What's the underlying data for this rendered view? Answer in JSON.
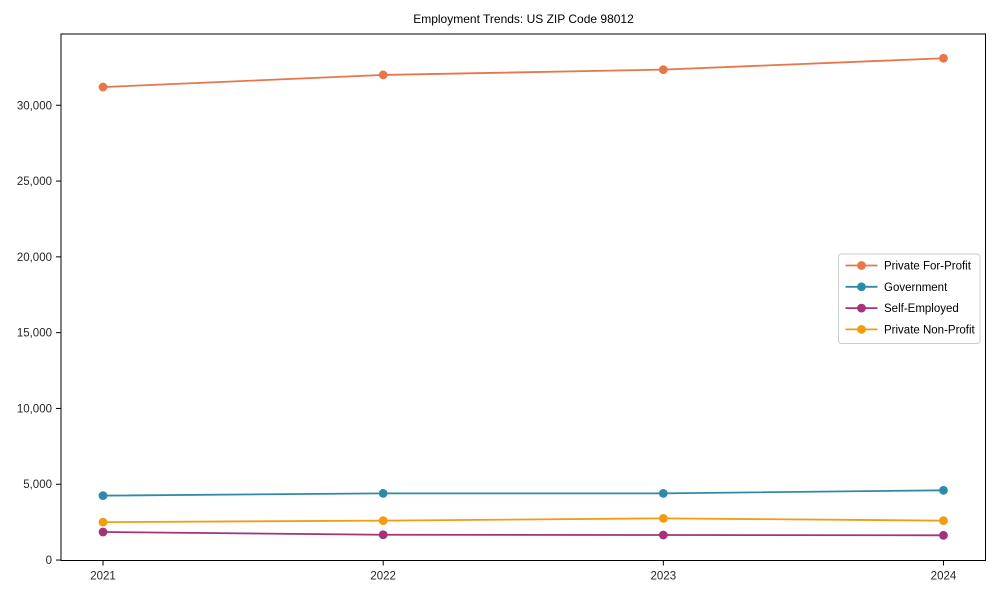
{
  "chart_data": {
    "type": "line",
    "title": "Employment Trends: US ZIP Code 98012",
    "xlabel": "",
    "ylabel": "",
    "x": [
      2021,
      2022,
      2023,
      2024
    ],
    "x_tick_labels": [
      "2021",
      "2022",
      "2023",
      "2024"
    ],
    "series": [
      {
        "name": "Private For-Profit",
        "color": "#e8764b",
        "values": [
          31200,
          32000,
          32350,
          33100
        ]
      },
      {
        "name": "Government",
        "color": "#2e8ba8",
        "values": [
          4250,
          4400,
          4400,
          4600
        ]
      },
      {
        "name": "Self-Employed",
        "color": "#a23477",
        "values": [
          1850,
          1670,
          1650,
          1630
        ]
      },
      {
        "name": "Private Non-Profit",
        "color": "#f39c12",
        "values": [
          2500,
          2600,
          2750,
          2600
        ]
      }
    ],
    "yticks": [
      0,
      5000,
      10000,
      15000,
      20000,
      25000,
      30000
    ],
    "ytick_labels": [
      "0",
      "5,000",
      "10,000",
      "15,000",
      "20,000",
      "25,000",
      "30,000"
    ],
    "ylim": [
      -30,
      34700
    ],
    "xlim": [
      2020.85,
      2024.15
    ],
    "grid": false,
    "legend": {
      "position": "center-right",
      "entries": [
        "Private For-Profit",
        "Government",
        "Self-Employed",
        "Private Non-Profit"
      ],
      "border_color": "#cccccc",
      "background": "#ffffff"
    },
    "marker": "circle",
    "axis_color": "#000000",
    "tick_label_color": "#262626"
  }
}
